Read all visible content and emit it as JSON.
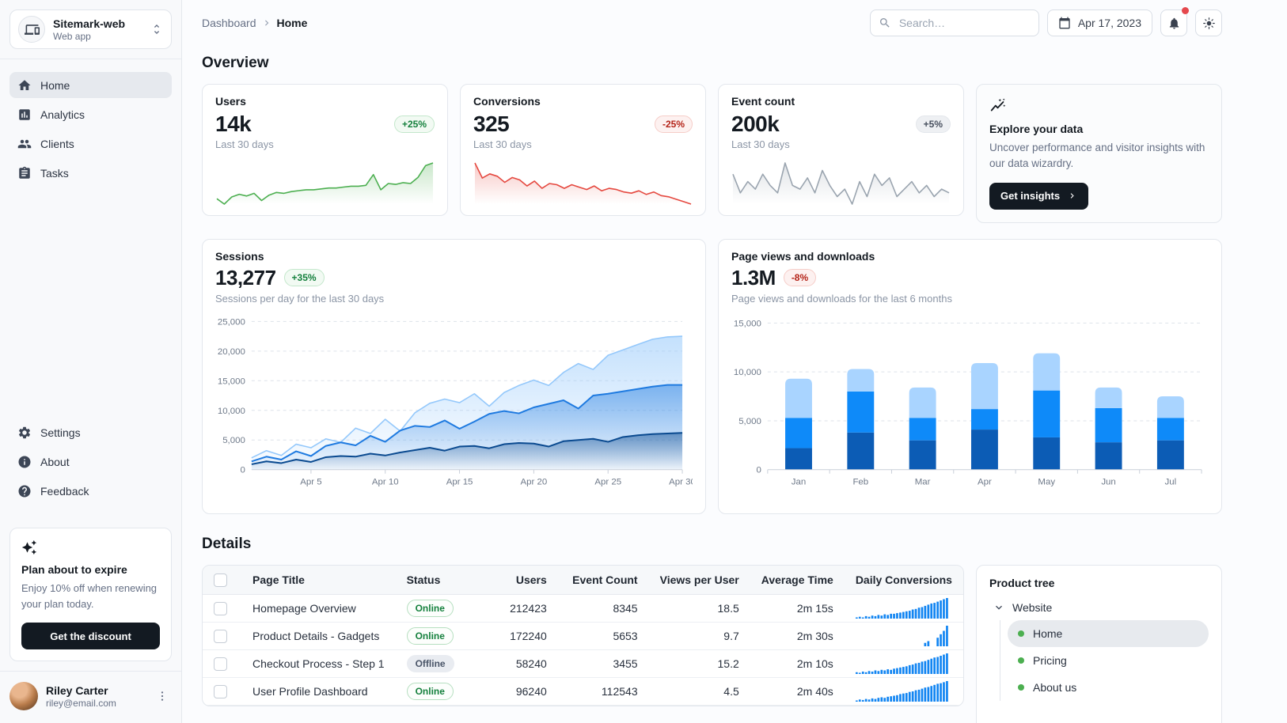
{
  "app": {
    "name": "Sitemark-web",
    "subtitle": "Web app"
  },
  "header": {
    "breadcrumb_root": "Dashboard",
    "breadcrumb_current": "Home",
    "search_placeholder": "Search…",
    "date_label": "Apr 17, 2023"
  },
  "sidebar": {
    "nav": [
      {
        "label": "Home",
        "icon": "home-icon",
        "active": true
      },
      {
        "label": "Analytics",
        "icon": "analytics-icon",
        "active": false
      },
      {
        "label": "Clients",
        "icon": "people-icon",
        "active": false
      },
      {
        "label": "Tasks",
        "icon": "tasks-icon",
        "active": false
      }
    ],
    "secondary": [
      {
        "label": "Settings",
        "icon": "gear-icon"
      },
      {
        "label": "About",
        "icon": "info-icon"
      },
      {
        "label": "Feedback",
        "icon": "help-icon"
      }
    ],
    "plan_card": {
      "title": "Plan about to expire",
      "body": "Enjoy 10% off when renewing your plan today.",
      "button_label": "Get the discount"
    },
    "user": {
      "name": "Riley Carter",
      "email": "riley@email.com"
    }
  },
  "overview": {
    "title": "Overview",
    "stat_cards": [
      {
        "title": "Users",
        "value": "14k",
        "trend": "+25%",
        "trend_type": "up",
        "caption": "Last 30 days"
      },
      {
        "title": "Conversions",
        "value": "325",
        "trend": "-25%",
        "trend_type": "down",
        "caption": "Last 30 days"
      },
      {
        "title": "Event count",
        "value": "200k",
        "trend": "+5%",
        "trend_type": "neutral",
        "caption": "Last 30 days"
      }
    ],
    "explore_card": {
      "title": "Explore your data",
      "body": "Uncover performance and visitor insights with our data wizardry.",
      "button_label": "Get insights"
    }
  },
  "sessions_card": {
    "title": "Sessions",
    "value": "13,277",
    "trend": "+35%",
    "trend_type": "up",
    "subtitle": "Sessions per day for the last 30 days"
  },
  "pageviews_card": {
    "title": "Page views and downloads",
    "value": "1.3M",
    "trend": "-8%",
    "trend_type": "down",
    "subtitle": "Page views and downloads for the last 6 months"
  },
  "details": {
    "title": "Details",
    "table": {
      "columns": [
        "Page Title",
        "Status",
        "Users",
        "Event Count",
        "Views per User",
        "Average Time",
        "Daily Conversions"
      ],
      "rows": [
        {
          "page_title": "Homepage Overview",
          "status": "Online",
          "users": "212423",
          "event_count": "8345",
          "views_per_user": "18.5",
          "average_time": "2m 15s",
          "daily_conversions": [
            2,
            3,
            2,
            4,
            3,
            5,
            4,
            6,
            5,
            7,
            6,
            8,
            8,
            9,
            10,
            11,
            12,
            13,
            15,
            16,
            18,
            19,
            21,
            23,
            25,
            26,
            28,
            30,
            32,
            34
          ]
        },
        {
          "page_title": "Product Details - Gadgets",
          "status": "Online",
          "users": "172240",
          "event_count": "5653",
          "views_per_user": "9.7",
          "average_time": "2m 30s",
          "daily_conversions": [
            0,
            0,
            0,
            0,
            0,
            0,
            0,
            0,
            0,
            0,
            0,
            0,
            0,
            0,
            0,
            0,
            0,
            0,
            0,
            0,
            0,
            0,
            2,
            3,
            0,
            0,
            5,
            7,
            9,
            12
          ]
        },
        {
          "page_title": "Checkout Process - Step 1",
          "status": "Offline",
          "users": "58240",
          "event_count": "3455",
          "views_per_user": "15.2",
          "average_time": "2m 10s",
          "daily_conversions": [
            3,
            2,
            4,
            3,
            5,
            4,
            6,
            5,
            7,
            6,
            8,
            7,
            9,
            10,
            11,
            12,
            13,
            15,
            16,
            18,
            19,
            21,
            22,
            24,
            26,
            28,
            29,
            31,
            33,
            35
          ]
        },
        {
          "page_title": "User Profile Dashboard",
          "status": "Online",
          "users": "96240",
          "event_count": "112543",
          "views_per_user": "4.5",
          "average_time": "2m 40s",
          "daily_conversions": [
            2,
            4,
            3,
            5,
            4,
            6,
            5,
            7,
            8,
            7,
            9,
            10,
            11,
            12,
            14,
            15,
            16,
            18,
            19,
            21,
            22,
            24,
            26,
            27,
            29,
            31,
            33,
            34,
            36,
            38
          ]
        }
      ]
    },
    "product_tree": {
      "title": "Product tree",
      "root_label": "Website",
      "items": [
        {
          "label": "Home",
          "selected": true
        },
        {
          "label": "Pricing",
          "selected": false
        },
        {
          "label": "About us",
          "selected": false
        }
      ]
    }
  },
  "chart_data": [
    {
      "type": "area",
      "title": "Sessions",
      "x_ticks": [
        "Apr 5",
        "Apr 10",
        "Apr 15",
        "Apr 20",
        "Apr 25",
        "Apr 30"
      ],
      "x_tick_indices": [
        4,
        9,
        14,
        19,
        24,
        29
      ],
      "ylim": [
        0,
        25000
      ],
      "y_ticks": [
        0,
        5000,
        10000,
        15000,
        20000,
        25000
      ],
      "grid": "dashed",
      "series": [
        {
          "name": "light",
          "values": [
            2000,
            3200,
            2400,
            4300,
            3700,
            5200,
            4600,
            7000,
            6100,
            8500,
            6500,
            9600,
            11200,
            11900,
            11300,
            12800,
            10700,
            13000,
            14200,
            15100,
            14200,
            16400,
            17900,
            16900,
            19300,
            20200,
            21100,
            22000,
            22400,
            22500
          ]
        },
        {
          "name": "mid",
          "values": [
            1400,
            2200,
            1700,
            3100,
            2300,
            4000,
            4600,
            4100,
            5700,
            4700,
            6600,
            7400,
            7200,
            8300,
            6900,
            8100,
            9400,
            9900,
            9500,
            10500,
            11100,
            11700,
            10300,
            12500,
            12800,
            13200,
            13600,
            14000,
            14300,
            14300
          ]
        },
        {
          "name": "dark",
          "values": [
            900,
            1400,
            1100,
            1700,
            1300,
            2100,
            2300,
            2200,
            2700,
            2400,
            2900,
            3300,
            3700,
            3200,
            3900,
            4000,
            3600,
            4300,
            4500,
            4400,
            3900,
            4800,
            5000,
            5200,
            4700,
            5500,
            5800,
            6000,
            6100,
            6200
          ]
        }
      ]
    },
    {
      "type": "stacked-bar",
      "title": "Page views and downloads",
      "categories": [
        "Jan",
        "Feb",
        "Mar",
        "Apr",
        "May",
        "Jun",
        "Jul"
      ],
      "ylim": [
        0,
        15000
      ],
      "y_ticks": [
        0,
        5000,
        10000,
        15000
      ],
      "grid": "dashed",
      "series": [
        {
          "name": "bottom-dark",
          "values": [
            2200,
            3800,
            3000,
            4100,
            3300,
            2800,
            3000
          ]
        },
        {
          "name": "middle",
          "values": [
            3100,
            4200,
            2300,
            2100,
            4800,
            3500,
            2300
          ]
        },
        {
          "name": "top-light",
          "values": [
            4000,
            2300,
            3100,
            4700,
            3800,
            2100,
            2200
          ]
        }
      ]
    },
    {
      "type": "sparklines",
      "series": [
        {
          "name": "users",
          "values": [
            28,
            22,
            30,
            33,
            31,
            34,
            26,
            32,
            35,
            34,
            36,
            37,
            38,
            38,
            39,
            40,
            40,
            41,
            42,
            42,
            43,
            55,
            38,
            45,
            44,
            46,
            45,
            52,
            65,
            68
          ]
        },
        {
          "name": "conversions",
          "values": [
            80,
            55,
            62,
            58,
            48,
            56,
            52,
            42,
            50,
            38,
            46,
            44,
            38,
            44,
            40,
            36,
            42,
            34,
            38,
            36,
            32,
            30,
            34,
            28,
            32,
            26,
            24,
            20,
            16,
            12
          ]
        },
        {
          "name": "event-count",
          "values": [
            30,
            25,
            28,
            26,
            30,
            27,
            25,
            33,
            27,
            26,
            29,
            25,
            31,
            27,
            24,
            26,
            22,
            28,
            24,
            30,
            27,
            29,
            24,
            26,
            28,
            25,
            27,
            24,
            26,
            25
          ]
        }
      ]
    }
  ],
  "colors": {
    "green": "#4caf50",
    "red": "#e5483f",
    "gray_spark": "#9aa4af",
    "area_light": "#94c8fb",
    "area_mid": "#1e7ae0",
    "area_dark": "#0a4a90",
    "bar_dark": "#0c5cb5",
    "bar_mid": "#0e8af9",
    "bar_light": "#a9d4ff",
    "table_spark": "#1285f2",
    "tree_dot": "#4caf50",
    "badge_red": "#e5484d",
    "dark_button_bg": "#131a22"
  }
}
